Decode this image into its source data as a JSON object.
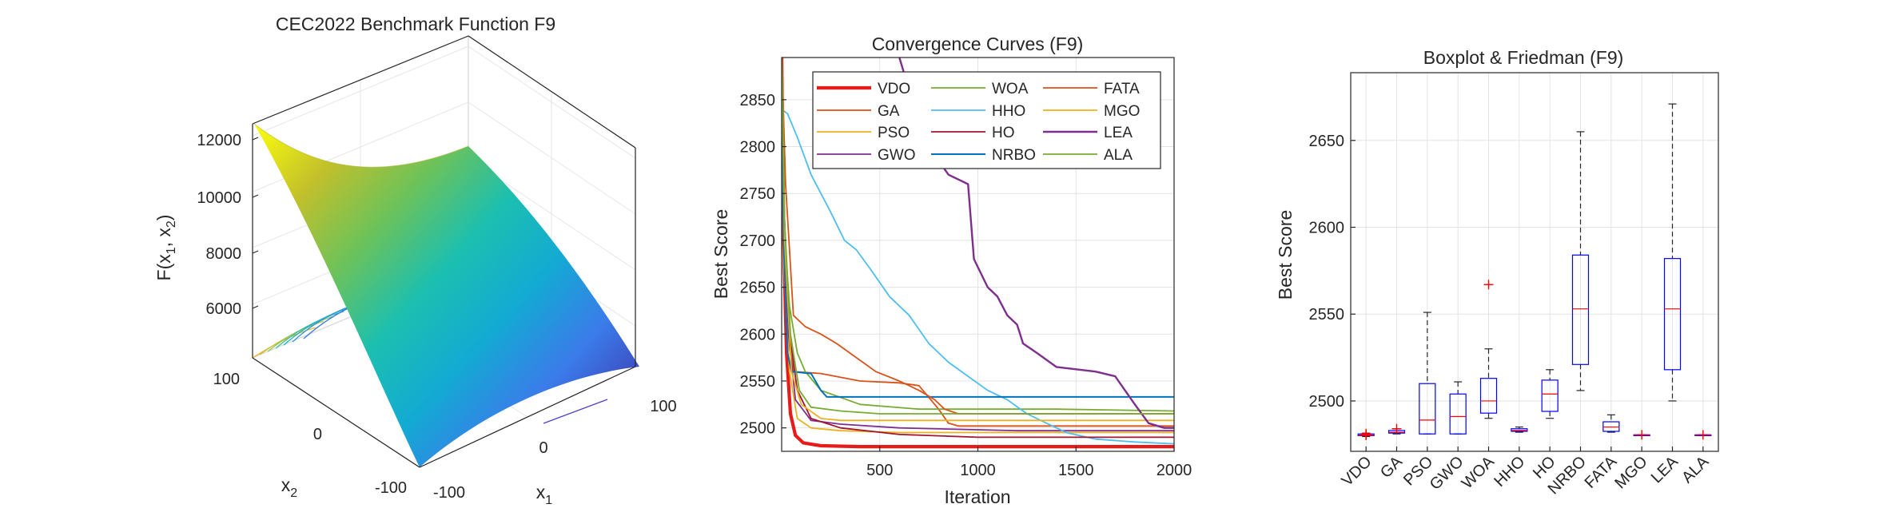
{
  "chart_data": [
    {
      "type": "surface",
      "title": "CEC2022 Benchmark Function F9",
      "zlabel_text": "F(x",
      "zlabel_sub1": "1",
      "zlabel_mid": ", x",
      "zlabel_sub2": "2",
      "zlabel_end": ")",
      "xlabel_text": "x",
      "xlabel_sub": "1",
      "ylabel_text": "x",
      "ylabel_sub": "2",
      "x_range": [
        -100,
        100
      ],
      "y_range": [
        -100,
        100
      ],
      "z_ticks": [
        "6000",
        "8000",
        "10000",
        "12000"
      ],
      "x1_ticks": [
        "-100",
        "0",
        "100"
      ],
      "x2_ticks": [
        "100",
        "0",
        "-100"
      ],
      "colormap": "parula",
      "z_max_approx": 12800,
      "z_min_approx": 2500
    },
    {
      "type": "line",
      "title": "Convergence Curves (F9)",
      "xlabel": "Iteration",
      "ylabel": "Best Score",
      "xlim": [
        0,
        2000
      ],
      "ylim": [
        2475,
        2895
      ],
      "xticks": [
        500,
        1000,
        1500,
        2000
      ],
      "yticks": [
        2500,
        2550,
        2600,
        2650,
        2700,
        2750,
        2800,
        2850
      ],
      "grid": true,
      "legend_position": "top-right",
      "series": [
        {
          "name": "VDO",
          "color": "#e81b1b",
          "width": 4.2,
          "points": [
            [
              0,
              2900
            ],
            [
              10,
              2700
            ],
            [
              25,
              2580
            ],
            [
              45,
              2515
            ],
            [
              70,
              2492
            ],
            [
              110,
              2484
            ],
            [
              200,
              2481
            ],
            [
              400,
              2480
            ],
            [
              2000,
              2480
            ]
          ]
        },
        {
          "name": "GA",
          "color": "#d95319",
          "width": 1.8,
          "points": [
            [
              0,
              2880
            ],
            [
              10,
              2720
            ],
            [
              30,
              2600
            ],
            [
              60,
              2560
            ],
            [
              200,
              2558
            ],
            [
              400,
              2550
            ],
            [
              600,
              2548
            ],
            [
              700,
              2545
            ],
            [
              760,
              2530
            ],
            [
              800,
              2520
            ],
            [
              850,
              2505
            ],
            [
              900,
              2502
            ],
            [
              2000,
              2502
            ]
          ]
        },
        {
          "name": "PSO",
          "color": "#edb120",
          "width": 1.8,
          "points": [
            [
              0,
              2870
            ],
            [
              10,
              2680
            ],
            [
              40,
              2560
            ],
            [
              80,
              2510
            ],
            [
              150,
              2500
            ],
            [
              300,
              2497
            ],
            [
              600,
              2495
            ],
            [
              2000,
              2495
            ]
          ]
        },
        {
          "name": "GWO",
          "color": "#7e2f8e",
          "width": 1.8,
          "points": [
            [
              0,
              2900
            ],
            [
              10,
              2750
            ],
            [
              35,
              2600
            ],
            [
              70,
              2530
            ],
            [
              150,
              2508
            ],
            [
              300,
              2504
            ],
            [
              600,
              2500
            ],
            [
              1200,
              2497
            ],
            [
              2000,
              2497
            ]
          ]
        },
        {
          "name": "WOA",
          "color": "#77ac30",
          "width": 1.8,
          "points": [
            [
              0,
              2900
            ],
            [
              10,
              2720
            ],
            [
              40,
              2630
            ],
            [
              80,
              2580
            ],
            [
              120,
              2560
            ],
            [
              200,
              2540
            ],
            [
              400,
              2525
            ],
            [
              700,
              2520
            ],
            [
              1400,
              2520
            ],
            [
              2000,
              2518
            ]
          ]
        },
        {
          "name": "HHO",
          "color": "#4dbeee",
          "width": 1.8,
          "points": [
            [
              0,
              2840
            ],
            [
              30,
              2835
            ],
            [
              80,
              2810
            ],
            [
              150,
              2770
            ],
            [
              250,
              2730
            ],
            [
              320,
              2700
            ],
            [
              380,
              2690
            ],
            [
              450,
              2670
            ],
            [
              550,
              2640
            ],
            [
              650,
              2620
            ],
            [
              750,
              2590
            ],
            [
              850,
              2570
            ],
            [
              950,
              2555
            ],
            [
              1050,
              2540
            ],
            [
              1150,
              2530
            ],
            [
              1250,
              2515
            ],
            [
              1350,
              2505
            ],
            [
              1450,
              2495
            ],
            [
              1600,
              2488
            ],
            [
              1800,
              2485
            ],
            [
              2000,
              2483
            ]
          ]
        },
        {
          "name": "HO",
          "color": "#a2142f",
          "width": 1.8,
          "points": [
            [
              0,
              2900
            ],
            [
              10,
              2740
            ],
            [
              40,
              2600
            ],
            [
              80,
              2540
            ],
            [
              150,
              2510
            ],
            [
              300,
              2500
            ],
            [
              600,
              2493
            ],
            [
              1000,
              2490
            ],
            [
              2000,
              2490
            ]
          ]
        },
        {
          "name": "NRBO",
          "color": "#0072bd",
          "width": 2.0,
          "points": [
            [
              0,
              2890
            ],
            [
              10,
              2700
            ],
            [
              30,
              2580
            ],
            [
              50,
              2560
            ],
            [
              150,
              2558
            ],
            [
              200,
              2540
            ],
            [
              230,
              2533
            ],
            [
              2000,
              2533
            ]
          ]
        },
        {
          "name": "FATA",
          "color": "#d95319",
          "width": 1.8,
          "points": [
            [
              0,
              2900
            ],
            [
              20,
              2760
            ],
            [
              60,
              2620
            ],
            [
              120,
              2608
            ],
            [
              200,
              2600
            ],
            [
              280,
              2590
            ],
            [
              380,
              2575
            ],
            [
              480,
              2560
            ],
            [
              600,
              2550
            ],
            [
              700,
              2540
            ],
            [
              780,
              2530
            ],
            [
              830,
              2520
            ],
            [
              900,
              2515
            ],
            [
              2000,
              2515
            ]
          ]
        },
        {
          "name": "MGO",
          "color": "#edb120",
          "width": 1.8,
          "points": [
            [
              0,
              2900
            ],
            [
              15,
              2700
            ],
            [
              50,
              2560
            ],
            [
              100,
              2525
            ],
            [
              200,
              2510
            ],
            [
              300,
              2508
            ],
            [
              2000,
              2508
            ]
          ]
        },
        {
          "name": "LEA",
          "color": "#7e2f8e",
          "width": 2.4,
          "points": [
            [
              600,
              2895
            ],
            [
              650,
              2860
            ],
            [
              750,
              2800
            ],
            [
              850,
              2770
            ],
            [
              950,
              2760
            ],
            [
              980,
              2680
            ],
            [
              1050,
              2650
            ],
            [
              1100,
              2640
            ],
            [
              1150,
              2620
            ],
            [
              1200,
              2610
            ],
            [
              1230,
              2590
            ],
            [
              1300,
              2580
            ],
            [
              1400,
              2565
            ],
            [
              1600,
              2560
            ],
            [
              1700,
              2555
            ],
            [
              1750,
              2540
            ],
            [
              1800,
              2525
            ],
            [
              1870,
              2505
            ],
            [
              1950,
              2500
            ],
            [
              2000,
              2500
            ]
          ]
        },
        {
          "name": "ALA",
          "color": "#77ac30",
          "width": 1.8,
          "points": [
            [
              0,
              2900
            ],
            [
              15,
              2720
            ],
            [
              45,
              2600
            ],
            [
              90,
              2540
            ],
            [
              150,
              2522
            ],
            [
              300,
              2518
            ],
            [
              500,
              2515
            ],
            [
              2000,
              2515
            ]
          ]
        }
      ]
    },
    {
      "type": "boxplot",
      "title": "Boxplot & Friedman (F9)",
      "ylabel": "Best Score",
      "ylim": [
        2471,
        2689
      ],
      "yticks": [
        2500,
        2550,
        2600,
        2650
      ],
      "categories": [
        "VDO",
        "GA",
        "PSO",
        "GWO",
        "WOA",
        "HHO",
        "HO",
        "NRBO",
        "FATA",
        "MGO",
        "LEA",
        "ALA"
      ],
      "boxes": [
        {
          "min": 2479.5,
          "q1": 2480,
          "median": 2480.3,
          "q3": 2481,
          "max": 2481.5,
          "outliers": [
            2480.2,
            2480.8,
            2481.2
          ]
        },
        {
          "min": 2481,
          "q1": 2481.5,
          "median": 2482,
          "q3": 2483,
          "max": 2484,
          "outliers": [
            2484
          ]
        },
        {
          "min": 2481,
          "q1": 2481,
          "median": 2489,
          "q3": 2510,
          "max": 2551,
          "outliers": []
        },
        {
          "min": 2481,
          "q1": 2481,
          "median": 2491,
          "q3": 2504,
          "max": 2511,
          "outliers": []
        },
        {
          "min": 2490,
          "q1": 2493,
          "median": 2500,
          "q3": 2513,
          "max": 2530,
          "outliers": [
            2567
          ]
        },
        {
          "min": 2482,
          "q1": 2482.5,
          "median": 2483,
          "q3": 2484,
          "max": 2485,
          "outliers": []
        },
        {
          "min": 2490,
          "q1": 2494,
          "median": 2504,
          "q3": 2512,
          "max": 2518,
          "outliers": []
        },
        {
          "min": 2506,
          "q1": 2521,
          "median": 2553,
          "q3": 2584,
          "max": 2655,
          "outliers": []
        },
        {
          "min": 2482,
          "q1": 2482.5,
          "median": 2485,
          "q3": 2488,
          "max": 2492,
          "outliers": []
        },
        {
          "min": 2480.5,
          "q1": 2480.5,
          "median": 2480.5,
          "q3": 2480.5,
          "max": 2480.5,
          "outliers": [
            2480.5
          ]
        },
        {
          "min": 2500,
          "q1": 2518,
          "median": 2553,
          "q3": 2582,
          "max": 2671,
          "outliers": []
        },
        {
          "min": 2480.5,
          "q1": 2480.5,
          "median": 2480.5,
          "q3": 2480.5,
          "max": 2480.5,
          "outliers": [
            2480.5
          ]
        }
      ],
      "box_color": "#0000ff",
      "median_color": "#ff0000",
      "outlier_color": "#ff0000"
    }
  ]
}
